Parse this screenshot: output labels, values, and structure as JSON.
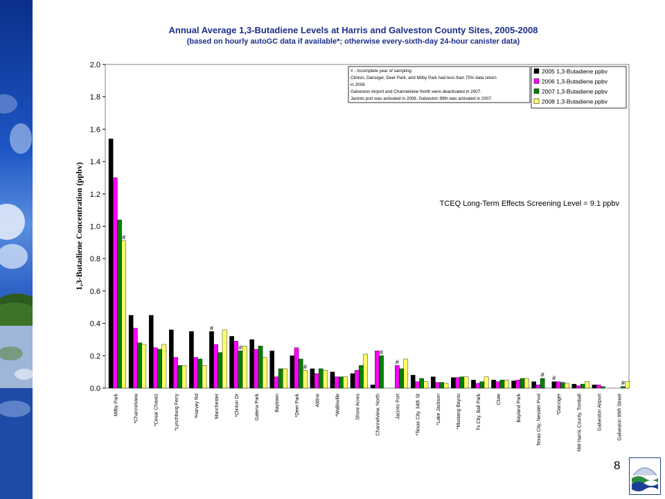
{
  "title": "Annual Average 1,3-Butadiene Levels at Harris and Galveston County Sites, 2005-2008",
  "subtitle": "(based on hourly autoGC data if available*; otherwise every-sixth-day 24-hour canister data)",
  "page_number": "8",
  "logo_name": "tceq-logo",
  "colors": {
    "title": "#1c2f8a",
    "series": [
      "#000000",
      "#ff00ff",
      "#008000",
      "#ffff66"
    ]
  },
  "chart_data": {
    "type": "bar",
    "title": "Annual Average 1,3-Butadiene Levels at Harris and Galveston County Sites, 2005-2008",
    "ylabel": "1,3-Butadiene Concentration (ppbv)",
    "ylim": [
      0,
      2.0
    ],
    "yticks": [
      "0.0",
      "0.2",
      "0.4",
      "0.6",
      "0.8",
      "1.0",
      "1.2",
      "1.4",
      "1.6",
      "1.8",
      "2.0"
    ],
    "grid": false,
    "legend_position": "top-right",
    "categories": [
      "Milby Park",
      "*Channelview",
      "*Cesar Chavez",
      "*Lynchburg Ferry",
      "*Harvey Rd",
      "Manchester",
      "*Clinton Dr",
      "Galena Park",
      "Baytown",
      "*Deer Park",
      "Aldine",
      "*Wallisville",
      "Shore Acres",
      "Channelview, North",
      "Jacinto Port",
      "*Texas City, 34th St",
      "*Lake Jackson",
      "*Mustang Bayou",
      "Tx City, Ball Park",
      "Clute",
      "Bayland Park",
      "Texas City, Nessler Pool",
      "*Danciger",
      "NW Harris County, Tomball",
      "Galveston Airport",
      "Galveston 99th Street"
    ],
    "series": [
      {
        "name": "2005 1,3-Butadiene ppbv",
        "color": "#000000",
        "values": [
          1.54,
          0.45,
          0.45,
          0.36,
          0.35,
          0.35,
          0.32,
          0.3,
          0.23,
          0.2,
          0.12,
          0.1,
          0.09,
          0.02,
          null,
          0.08,
          0.07,
          0.065,
          0.05,
          0.05,
          0.045,
          0.04,
          0.04,
          0.025,
          0.02,
          null
        ]
      },
      {
        "name": "2006 1,3-Butadiene ppbv",
        "color": "#ff00ff",
        "values": [
          1.3,
          0.37,
          0.25,
          0.19,
          0.19,
          0.27,
          0.29,
          0.24,
          0.07,
          0.25,
          0.09,
          0.07,
          0.11,
          0.23,
          0.14,
          0.04,
          0.035,
          0.065,
          0.03,
          0.04,
          0.05,
          0.02,
          0.04,
          0.015,
          0.02,
          null
        ]
      },
      {
        "name": "2007 1,3-Butadiene ppbv",
        "color": "#008000",
        "values": [
          1.04,
          0.28,
          0.24,
          0.14,
          0.18,
          0.22,
          0.23,
          0.26,
          0.12,
          0.18,
          0.12,
          0.07,
          0.14,
          0.2,
          0.12,
          0.06,
          0.035,
          0.07,
          0.04,
          0.05,
          0.06,
          0.06,
          0.035,
          0.025,
          0.01,
          0.01
        ]
      },
      {
        "name": "2008 1,3-Butadiene ppbv",
        "color": "#ffff66",
        "values": [
          0.91,
          0.27,
          0.27,
          0.14,
          0.14,
          0.36,
          0.26,
          0.19,
          0.12,
          0.11,
          0.11,
          0.07,
          0.21,
          null,
          0.18,
          0.04,
          0.03,
          0.07,
          0.07,
          0.05,
          0.06,
          null,
          0.03,
          0.04,
          null,
          0.04
        ]
      }
    ],
    "incomplete_marks": [
      {
        "category_index": 0,
        "series_index": 3,
        "label": "#"
      },
      {
        "category_index": 5,
        "series_index": 0,
        "label": "#"
      },
      {
        "category_index": 6,
        "series_index": 2,
        "label": "#"
      },
      {
        "category_index": 9,
        "series_index": 3,
        "label": "#"
      },
      {
        "category_index": 13,
        "series_index": 2,
        "label": "#"
      },
      {
        "category_index": 14,
        "series_index": 1,
        "label": "#"
      },
      {
        "category_index": 21,
        "series_index": 2,
        "label": "#"
      },
      {
        "category_index": 22,
        "series_index": 0,
        "label": "#"
      },
      {
        "category_index": 25,
        "series_index": 2,
        "label": "#"
      }
    ],
    "notes": [
      "# - Incomplete year of sampling",
      "Clinton, Danciger, Deer Park, and Milby Park had less than 75% data return",
      "in 2008",
      "Galveston Airport and Channelview North were deactivated in 2007.",
      "Jacinto port was activated in 2006. Galveston 99th was activated in 2007."
    ],
    "annotation": "TCEQ Long-Term Effects Screening Level = 9.1 ppbv"
  }
}
